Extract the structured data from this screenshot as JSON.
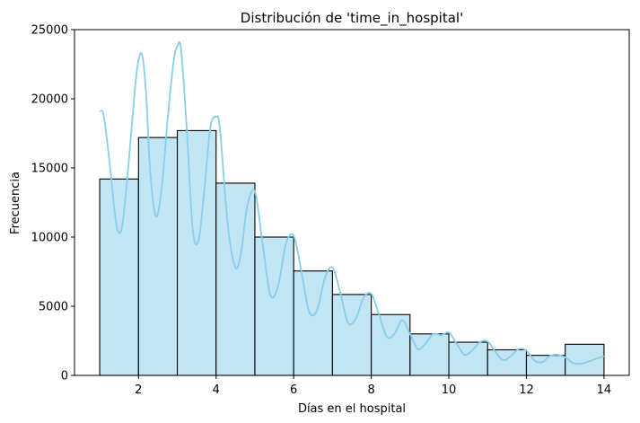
{
  "chart_data": {
    "type": "bar",
    "title": "Distribución de 'time_in_hospital'",
    "xlabel": "Días en el hospital",
    "ylabel": "Frecuencia",
    "xlim": [
      0.35,
      14.65
    ],
    "ylim": [
      0,
      25000
    ],
    "xticks": [
      "2",
      "4",
      "6",
      "8",
      "10",
      "12",
      "14"
    ],
    "xtick_values": [
      2,
      4,
      6,
      8,
      10,
      12,
      14
    ],
    "yticks": [
      "0",
      "5000",
      "10000",
      "15000",
      "20000",
      "25000"
    ],
    "ytick_values": [
      0,
      5000,
      10000,
      15000,
      20000,
      25000
    ],
    "grid": false,
    "bins": [
      {
        "x0": 1,
        "x1": 2,
        "value": 14200
      },
      {
        "x0": 2,
        "x1": 3,
        "value": 17200
      },
      {
        "x0": 3,
        "x1": 4,
        "value": 17700
      },
      {
        "x0": 4,
        "x1": 5,
        "value": 13900
      },
      {
        "x0": 5,
        "x1": 6,
        "value": 10000
      },
      {
        "x0": 6,
        "x1": 7,
        "value": 7550
      },
      {
        "x0": 7,
        "x1": 8,
        "value": 5850
      },
      {
        "x0": 8,
        "x1": 9,
        "value": 4400
      },
      {
        "x0": 9,
        "x1": 10,
        "value": 3000
      },
      {
        "x0": 10,
        "x1": 11,
        "value": 2400
      },
      {
        "x0": 11,
        "x1": 12,
        "value": 1850
      },
      {
        "x0": 12,
        "x1": 13,
        "value": 1450
      },
      {
        "x0": 13,
        "x1": 14,
        "value": 2250
      }
    ],
    "kde": {
      "x": [
        1,
        1.1,
        1.25,
        1.4,
        1.5,
        1.6,
        1.75,
        1.9,
        2.0,
        2.1,
        2.2,
        2.3,
        2.45,
        2.6,
        2.75,
        2.9,
        3.0,
        3.1,
        3.25,
        3.4,
        3.55,
        3.7,
        3.85,
        4.0,
        4.1,
        4.3,
        4.5,
        4.65,
        4.8,
        5.0,
        5.2,
        5.4,
        5.6,
        5.8,
        6.0,
        6.2,
        6.4,
        6.6,
        6.8,
        7.0,
        7.2,
        7.4,
        7.6,
        7.8,
        8.0,
        8.2,
        8.4,
        8.6,
        8.8,
        9.0,
        9.2,
        9.4,
        9.6,
        9.8,
        10.0,
        10.2,
        10.4,
        10.6,
        10.8,
        11.0,
        11.2,
        11.4,
        11.6,
        11.8,
        12.0,
        12.2,
        12.4,
        12.6,
        12.8,
        13.0,
        13.2,
        13.4,
        13.6,
        13.8,
        14.0
      ],
      "y": [
        19100,
        18800,
        15500,
        11500,
        10300,
        11200,
        15500,
        20500,
        22800,
        23100,
        20200,
        14800,
        11500,
        13600,
        18500,
        22600,
        23800,
        23500,
        17500,
        10500,
        9800,
        13500,
        17900,
        18700,
        17800,
        10900,
        7800,
        9000,
        12200,
        13300,
        9500,
        5800,
        6500,
        9500,
        10100,
        7500,
        4600,
        4700,
        7000,
        7800,
        6000,
        3800,
        4100,
        5600,
        5900,
        4400,
        2800,
        3000,
        4000,
        3000,
        1900,
        2300,
        3000,
        2900,
        3100,
        2300,
        1500,
        1800,
        2400,
        2450,
        1700,
        1100,
        1400,
        1900,
        1800,
        1100,
        950,
        1400,
        1500,
        1300,
        900,
        850,
        1000,
        1200,
        1400
      ]
    },
    "colors": {
      "bar_fill": "#c2e5f4",
      "bar_edge": "#000000",
      "kde_line": "#87ceeb"
    }
  }
}
